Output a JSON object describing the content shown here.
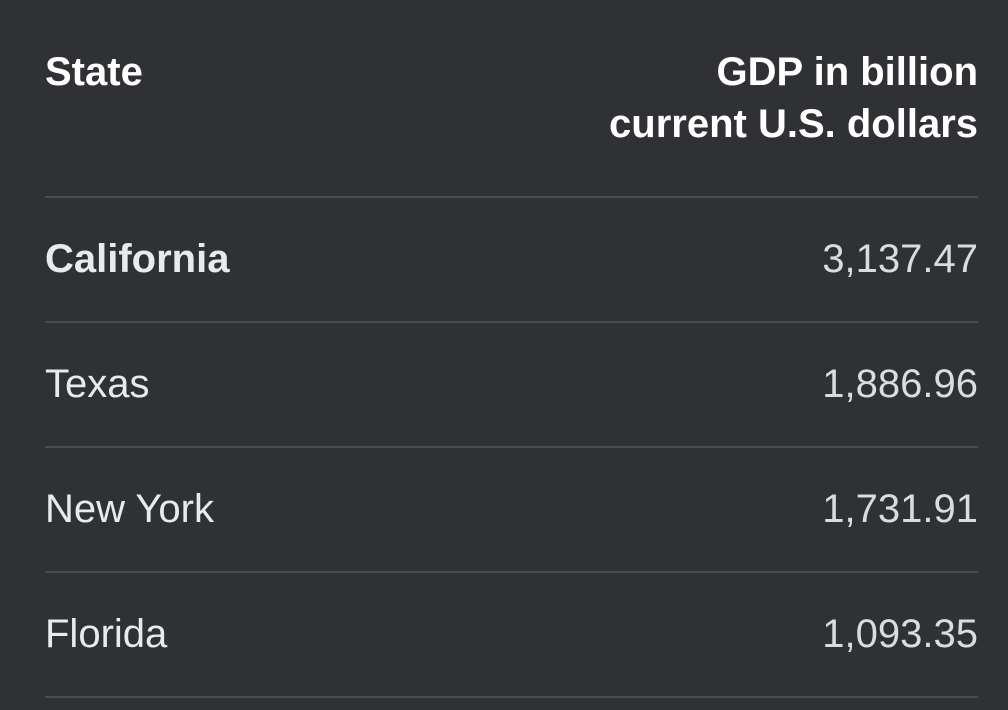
{
  "table": {
    "header": [
      "State",
      "GDP in billion current U.S. dollars"
    ],
    "rows": [
      [
        "California",
        "3,137.47"
      ],
      [
        "Texas",
        "1,886.96"
      ],
      [
        "New York",
        "1,731.91"
      ],
      [
        "Florida",
        "1,093.35"
      ]
    ]
  }
}
